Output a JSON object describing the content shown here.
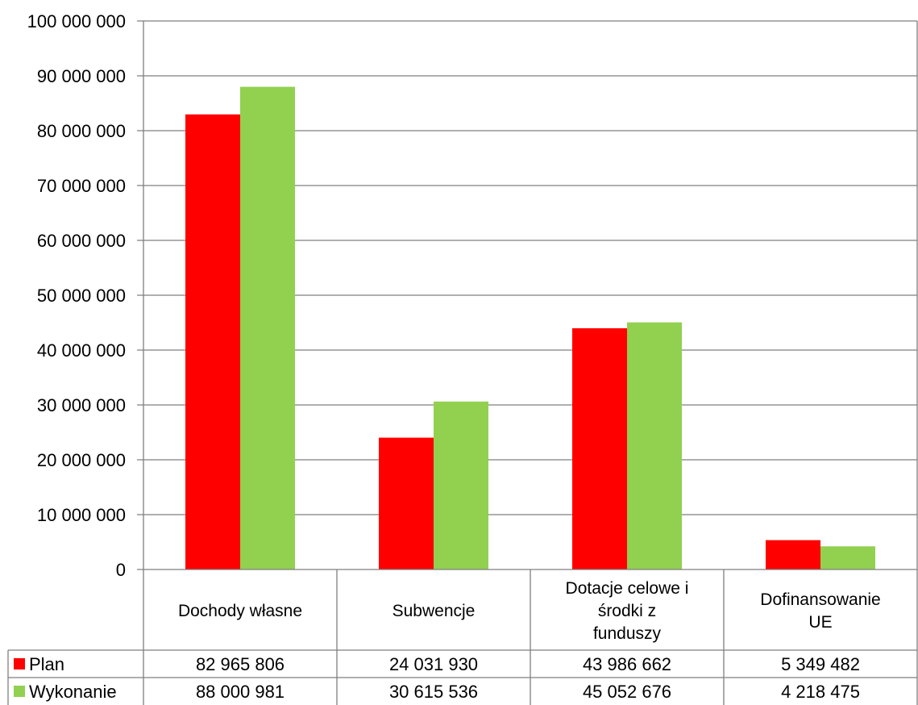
{
  "chart_data": {
    "type": "bar",
    "categories": [
      [
        "Dochody własne"
      ],
      [
        "Subwencje"
      ],
      [
        "Dotacje celowe i",
        "środki z",
        "funduszy"
      ],
      [
        "Dofinansowanie",
        "UE"
      ]
    ],
    "series": [
      {
        "name": "Plan",
        "color": "#ff0000",
        "values": [
          82965806,
          24031930,
          43986662,
          5349482
        ],
        "labels": [
          "82 965 806",
          "24 031 930",
          "43 986 662",
          "5 349 482"
        ]
      },
      {
        "name": "Wykonanie",
        "color": "#92d050",
        "values": [
          88000981,
          30615536,
          45052676,
          4218475
        ],
        "labels": [
          "88 000 981",
          "30 615 536",
          "45 052 676",
          "4 218 475"
        ]
      }
    ],
    "ylim": [
      0,
      100000000
    ],
    "yticks": [
      "0",
      "10 000 000",
      "20 000 000",
      "30 000 000",
      "40 000 000",
      "50 000 000",
      "60 000 000",
      "70 000 000",
      "80 000 000",
      "90 000 000",
      "100 000 000"
    ],
    "grid": true,
    "legend": "data-table"
  }
}
